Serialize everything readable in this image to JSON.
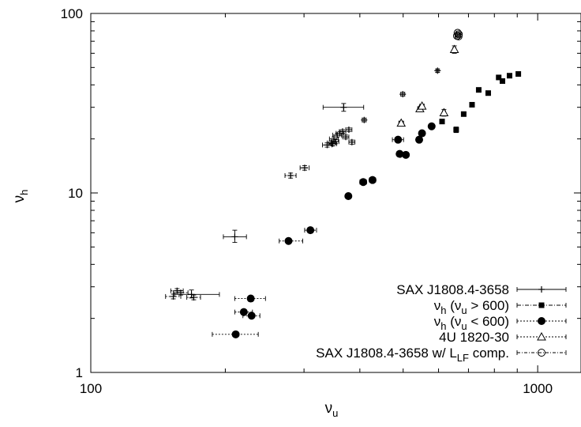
{
  "chart_data": {
    "type": "scatter",
    "xscale": "log",
    "yscale": "log",
    "xlim": [
      100,
      1250
    ],
    "ylim": [
      1,
      100
    ],
    "x_ticks": [
      "100",
      "1000"
    ],
    "y_ticks": [
      "1",
      "10",
      "100"
    ],
    "xlabel": {
      "main": "ν",
      "sub": "u"
    },
    "ylabel": {
      "main": "ν",
      "sub": "h"
    },
    "grid": false,
    "legend_position": "bottom-right",
    "series": [
      {
        "label_parts": [
          {
            "t": "SAX J1808.4-3658",
            "s": ""
          }
        ],
        "marker": "plus",
        "line_dash": "solid",
        "points": [
          {
            "x": 368,
            "y": 30.0,
            "xerr": [
              37,
              40
            ],
            "yerr": [
              1.5,
              1.5
            ]
          },
          {
            "x": 210,
            "y": 5.7,
            "xerr": [
              12,
              13
            ],
            "yerr": [
              0.4,
              0.5
            ]
          },
          {
            "x": 168,
            "y": 2.72,
            "xerr": [
              14,
              26
            ],
            "yerr": [
              0.12,
              0.16
            ]
          }
        ]
      },
      {
        "label_parts": [
          {
            "t": "ν",
            "s": ""
          },
          {
            "t": "h",
            "s": "sub"
          },
          {
            "t": "   (ν",
            "s": ""
          },
          {
            "t": "u",
            "s": "sub"
          },
          {
            "t": " > 600)",
            "s": ""
          }
        ],
        "marker": "filled-square",
        "line_dash": "5,2,1,2",
        "points": [
          {
            "x": 611,
            "y": 25.0,
            "xerr": [
              5,
              5
            ]
          },
          {
            "x": 657,
            "y": 22.5,
            "xerr": [
              5,
              5
            ],
            "yerr": [
              0.8,
              0.8
            ]
          },
          {
            "x": 683,
            "y": 27.5,
            "xerr": [
              4,
              4
            ]
          },
          {
            "x": 713,
            "y": 31.0,
            "xerr": [
              4,
              4
            ]
          },
          {
            "x": 738,
            "y": 37.5,
            "xerr": [
              4,
              4
            ]
          },
          {
            "x": 775,
            "y": 36.0,
            "xerr": [
              4,
              4
            ]
          },
          {
            "x": 818,
            "y": 44.0,
            "xerr": [
              4,
              4
            ]
          },
          {
            "x": 834,
            "y": 42.0,
            "xerr": [
              4,
              4
            ]
          },
          {
            "x": 865,
            "y": 45.0,
            "xerr": [
              4,
              4
            ]
          },
          {
            "x": 905,
            "y": 46.0,
            "xerr": [
              4,
              4
            ]
          }
        ]
      },
      {
        "label_parts": [
          {
            "t": "ν",
            "s": ""
          },
          {
            "t": "h",
            "s": "sub"
          },
          {
            "t": "   (ν",
            "s": ""
          },
          {
            "t": "u",
            "s": "sub"
          },
          {
            "t": " < 600)",
            "s": ""
          }
        ],
        "marker": "filled-circle",
        "line_dash": "2,2",
        "points": [
          {
            "x": 228,
            "y": 2.58,
            "xerr": [
              18,
              18
            ]
          },
          {
            "x": 220,
            "y": 2.17,
            "xerr": [
              10,
              10
            ]
          },
          {
            "x": 229,
            "y": 2.07,
            "xerr": [
              10,
              10
            ]
          },
          {
            "x": 211,
            "y": 1.63,
            "xerr": [
              24,
              26
            ]
          },
          {
            "x": 277,
            "y": 5.4,
            "xerr": [
              13,
              21
            ]
          },
          {
            "x": 310,
            "y": 6.2,
            "xerr": [
              9,
              10
            ]
          },
          {
            "x": 377,
            "y": 9.6,
            "xerr": [
              4,
              4
            ]
          },
          {
            "x": 407,
            "y": 11.5,
            "xerr": [
              7,
              7
            ]
          },
          {
            "x": 427,
            "y": 11.8,
            "xerr": [
              7,
              7
            ]
          },
          {
            "x": 487,
            "y": 19.8,
            "xerr": [
              14,
              14
            ]
          },
          {
            "x": 491,
            "y": 16.5,
            "xerr": [
              6,
              6
            ]
          },
          {
            "x": 507,
            "y": 16.3,
            "xerr": [
              5,
              5
            ]
          },
          {
            "x": 543,
            "y": 19.8,
            "xerr": [
              6,
              6
            ]
          },
          {
            "x": 551,
            "y": 21.5,
            "xerr": [
              6,
              6
            ]
          },
          {
            "x": 579,
            "y": 23.5,
            "xerr": [
              8,
              8
            ]
          }
        ]
      },
      {
        "label_parts": [
          {
            "t": "4U 1820-30",
            "s": ""
          }
        ],
        "marker": "open-triangle",
        "line_dash": "2,2",
        "points": [
          {
            "x": 495,
            "y": 24.5,
            "xerr": [
              6,
              6
            ],
            "yerr": [
              0.6,
              0.6
            ]
          },
          {
            "x": 545,
            "y": 29.5,
            "xerr": [
              6,
              6
            ],
            "yerr": [
              0.6,
              0.6
            ]
          },
          {
            "x": 551,
            "y": 30.5,
            "xerr": [
              6,
              6
            ],
            "yerr": [
              0.6,
              0.6
            ]
          },
          {
            "x": 617,
            "y": 28.0,
            "xerr": [
              5,
              5
            ],
            "yerr": [
              1.2,
              1.2
            ]
          },
          {
            "x": 651,
            "y": 63.0,
            "xerr": [
              5,
              5
            ],
            "yerr": [
              3,
              3
            ]
          }
        ]
      },
      {
        "label_parts": [
          {
            "t": "SAX J1808.4-3658 w/ L",
            "s": ""
          },
          {
            "t": "LF",
            "s": "sub"
          },
          {
            "t": " comp.",
            "s": ""
          }
        ],
        "marker": "open-circle",
        "line_dash": "4,2,1,2",
        "points": [
          {
            "x": 662,
            "y": 78.0,
            "xerr": [
              5,
              5
            ]
          },
          {
            "x": 666,
            "y": 76.5,
            "xerr": [
              5,
              5
            ]
          },
          {
            "x": 660,
            "y": 75.0,
            "xerr": [
              5,
              5
            ]
          },
          {
            "x": 665,
            "y": 74.5,
            "xerr": [
              5,
              5
            ]
          }
        ]
      },
      {
        "label_parts": [],
        "marker": "plus",
        "line_dash": "2,2",
        "points": [
          {
            "x": 338,
            "y": 18.5,
            "xerr": [
              8,
              8
            ],
            "yerr": [
              0.5,
              0.5
            ]
          },
          {
            "x": 345,
            "y": 19.0,
            "xerr": [
              7,
              7
            ],
            "yerr": [
              0.5,
              0.5
            ]
          },
          {
            "x": 348,
            "y": 18.8,
            "xerr": [
              7,
              7
            ],
            "yerr": [
              0.5,
              0.5
            ]
          },
          {
            "x": 350,
            "y": 20.0,
            "xerr": [
              8,
              8
            ],
            "yerr": [
              0.5,
              0.5
            ]
          },
          {
            "x": 353,
            "y": 19.3,
            "xerr": [
              6,
              6
            ],
            "yerr": [
              0.5,
              0.5
            ]
          },
          {
            "x": 356,
            "y": 21.0,
            "xerr": [
              8,
              8
            ],
            "yerr": [
              0.5,
              0.5
            ]
          },
          {
            "x": 361,
            "y": 21.5,
            "xerr": [
              7,
              7
            ],
            "yerr": [
              0.5,
              0.5
            ]
          },
          {
            "x": 366,
            "y": 22.0,
            "xerr": [
              6,
              6
            ],
            "yerr": [
              0.5,
              0.5
            ]
          },
          {
            "x": 372,
            "y": 20.5,
            "xerr": [
              6,
              6
            ],
            "yerr": [
              0.5,
              0.5
            ]
          },
          {
            "x": 378,
            "y": 22.5,
            "xerr": [
              6,
              6
            ],
            "yerr": [
              0.5,
              0.5
            ]
          },
          {
            "x": 384,
            "y": 19.2,
            "xerr": [
              6,
              6
            ],
            "yerr": [
              0.5,
              0.5
            ]
          },
          {
            "x": 280,
            "y": 12.5,
            "xerr": [
              8,
              8
            ],
            "yerr": [
              0.4,
              0.4
            ]
          },
          {
            "x": 301,
            "y": 13.8,
            "xerr": [
              7,
              7
            ],
            "yerr": [
              0.4,
              0.4
            ]
          },
          {
            "x": 409,
            "y": 25.5,
            "xerr": [
              4,
              4
            ],
            "yerr": [
              0.6,
              0.6
            ]
          },
          {
            "x": 499,
            "y": 35.5,
            "xerr": [
              5,
              5
            ],
            "yerr": [
              0.8,
              0.8
            ]
          },
          {
            "x": 597,
            "y": 48.0,
            "xerr": [
              4,
              4
            ],
            "yerr": [
              1,
              1
            ]
          },
          {
            "x": 153,
            "y": 2.65,
            "xerr": [
              6,
              6
            ],
            "yerr": [
              0.08,
              0.08
            ]
          },
          {
            "x": 159,
            "y": 2.78,
            "xerr": [
              6,
              6
            ],
            "yerr": [
              0.08,
              0.08
            ]
          },
          {
            "x": 170,
            "y": 2.62,
            "xerr": [
              6,
              6
            ],
            "yerr": [
              0.08,
              0.08
            ]
          },
          {
            "x": 156,
            "y": 2.85,
            "xerr": [
              5,
              5
            ],
            "yerr": [
              0.08,
              0.08
            ]
          }
        ]
      }
    ]
  }
}
